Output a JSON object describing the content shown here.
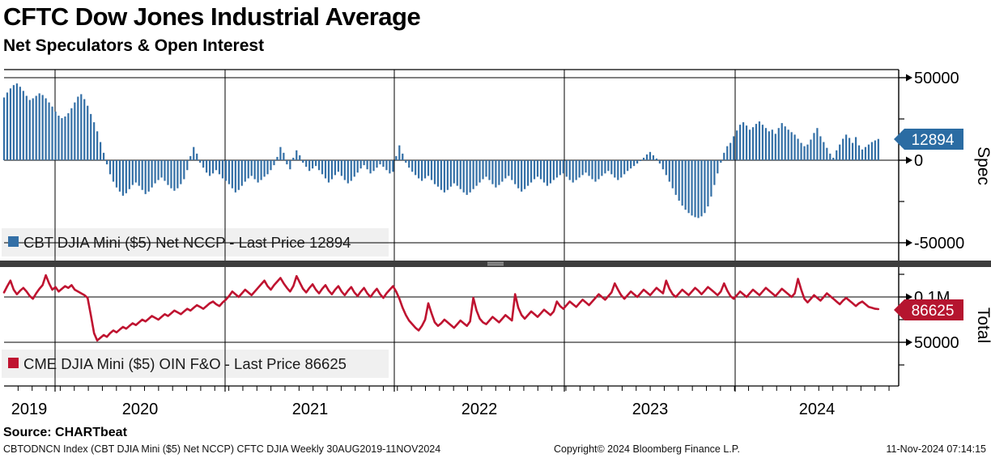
{
  "header": {
    "title": "CFTC Dow Jones Industrial Average",
    "subtitle": "Net Speculators & Open Interest"
  },
  "footer": {
    "source": "Source: CHARTbeat",
    "left": "CBTODNCN Index (CBT DJIA Mini ($5) Net NCCP) CFTC DJIA  Weekly 30AUG2019-11NOV2024",
    "center": "Copyright© 2024 Bloomberg Finance L.P.",
    "right": "11-Nov-2024 07:14:15"
  },
  "chart_data": {
    "type": "bar",
    "subtype": "two-panel bar + line, weekly time series",
    "period": "Weekly 30AUG2019-11NOV2024",
    "x_years": [
      "2019",
      "2020",
      "2021",
      "2022",
      "2023",
      "2024"
    ],
    "grid": true,
    "panels": [
      {
        "name": "Spec",
        "axis_label": "Spec",
        "type": "bar",
        "series_name": "CBT DJIA Mini ($5) Net NCCP",
        "legend": "CBT DJIA Mini ($5) Net NCCP - Last Price 12894",
        "last_price": 12894,
        "last_price_label": "12894",
        "color": "#336fa6",
        "tag_color": "#2b6ca3",
        "ylim": [
          -60000,
          55000
        ],
        "ticks": [
          {
            "v": 50000,
            "label": "50000"
          },
          {
            "v": 0,
            "label": "0"
          },
          {
            "v": -50000,
            "label": "-50000"
          }
        ],
        "minor_ticks": [
          25000,
          -25000
        ],
        "values": [
          38000,
          41000,
          43500,
          45500,
          46500,
          44500,
          42000,
          39000,
          36500,
          37500,
          39000,
          40500,
          39500,
          37500,
          35000,
          32500,
          29500,
          27000,
          25500,
          26500,
          28500,
          31500,
          35000,
          38500,
          40000,
          37000,
          33000,
          28000,
          23000,
          17500,
          11000,
          4500,
          -2500,
          -8500,
          -13000,
          -16500,
          -19000,
          -21500,
          -20000,
          -17500,
          -15000,
          -13500,
          -15500,
          -18000,
          -20500,
          -19000,
          -16500,
          -14000,
          -12000,
          -10500,
          -12500,
          -15000,
          -17000,
          -18500,
          -17000,
          -14500,
          -11500,
          -6000,
          2500,
          8000,
          4000,
          -1500,
          -4500,
          -7500,
          -9500,
          -8000,
          -6000,
          -8500,
          -11000,
          -12500,
          -14500,
          -17000,
          -19500,
          -18000,
          -15500,
          -13000,
          -11000,
          -9500,
          -11500,
          -13500,
          -12000,
          -10000,
          -8500,
          -6000,
          -3000,
          2000,
          8000,
          4500,
          -2500,
          -5500,
          1500,
          6000,
          3000,
          -1500,
          -4000,
          -6500,
          -5000,
          -3500,
          -6000,
          -8500,
          -11000,
          -13500,
          -11500,
          -9000,
          -7000,
          -9500,
          -12000,
          -14000,
          -12500,
          -10000,
          -7500,
          -5000,
          -3000,
          -5500,
          -8000,
          -6500,
          -4500,
          -2500,
          -4000,
          -6000,
          -8000,
          -7000,
          2500,
          9000,
          4000,
          -1500,
          -4500,
          -7000,
          -9000,
          -11000,
          -12500,
          -11000,
          -9500,
          -12000,
          -14500,
          -16000,
          -18000,
          -19500,
          -18000,
          -16000,
          -14000,
          -15500,
          -17500,
          -19500,
          -21000,
          -19500,
          -17500,
          -15500,
          -13500,
          -11500,
          -10000,
          -12000,
          -14500,
          -16500,
          -15000,
          -13000,
          -11000,
          -9500,
          -12000,
          -14500,
          -17000,
          -19000,
          -17500,
          -15500,
          -13500,
          -11500,
          -10000,
          -11500,
          -13500,
          -15500,
          -14000,
          -12000,
          -10500,
          -9000,
          -8000,
          -10000,
          -12000,
          -13500,
          -12000,
          -10500,
          -9000,
          -7500,
          -9500,
          -11500,
          -13000,
          -11500,
          -9500,
          -8000,
          -6500,
          -8500,
          -10500,
          -12000,
          -10500,
          -8500,
          -6500,
          -5000,
          -3500,
          -2000,
          -500,
          1500,
          3500,
          5000,
          3000,
          1000,
          -2000,
          -5500,
          -9000,
          -13000,
          -17000,
          -21000,
          -24500,
          -27500,
          -30000,
          -32000,
          -33500,
          -34500,
          -35000,
          -34000,
          -32000,
          -28000,
          -22000,
          -15000,
          -8000,
          -1500,
          4500,
          8500,
          10500,
          14500,
          18000,
          21500,
          23000,
          21000,
          18500,
          20000,
          22000,
          23500,
          21500,
          19500,
          17500,
          18500,
          16000,
          19500,
          22500,
          20500,
          18500,
          17000,
          15500,
          13000,
          10500,
          8500,
          9500,
          12500,
          16500,
          19500,
          14500,
          11000,
          7500,
          4000,
          1500,
          6000,
          9500,
          13000,
          15500,
          13500,
          10500,
          14000,
          9000,
          6500,
          8000,
          9500,
          11000,
          12000,
          12894
        ]
      },
      {
        "name": "Total",
        "axis_label": "Total",
        "type": "line",
        "series_name": "CME DJIA Mini ($5) OIN F&O",
        "legend": "CME DJIA Mini ($5) OIN F&O - Last Price 86625",
        "last_price": 86625,
        "last_price_label": "86625",
        "color": "#bf1330",
        "tag_color": "#b5152f",
        "ylim": [
          0,
          132000
        ],
        "ticks": [
          {
            "v": 100000,
            "label": "0.1M"
          },
          {
            "v": 50000,
            "label": "50000"
          }
        ],
        "minor_ticks": [
          125000,
          75000,
          25000
        ],
        "values": [
          105000,
          112000,
          118000,
          108000,
          103000,
          107000,
          110000,
          106000,
          101000,
          98000,
          104000,
          109000,
          113000,
          124000,
          115000,
          108000,
          111000,
          106000,
          109000,
          112000,
          110000,
          113000,
          108000,
          106000,
          104000,
          102000,
          99000,
          80000,
          60000,
          52000,
          55000,
          58000,
          56000,
          60000,
          63000,
          61000,
          64000,
          67000,
          65000,
          68000,
          71000,
          69000,
          72000,
          75000,
          73000,
          76000,
          79000,
          77000,
          75000,
          78000,
          81000,
          79000,
          82000,
          85000,
          83000,
          81000,
          84000,
          87000,
          85000,
          88000,
          91000,
          89000,
          87000,
          90000,
          93000,
          95000,
          92000,
          90000,
          94000,
          97000,
          101000,
          106000,
          103000,
          100000,
          104000,
          108000,
          105000,
          102000,
          106000,
          110000,
          114000,
          118000,
          112000,
          108000,
          113000,
          117000,
          121000,
          115000,
          110000,
          106000,
          112000,
          123000,
          116000,
          109000,
          105000,
          110000,
          114000,
          108000,
          104000,
          109000,
          113000,
          107000,
          103000,
          108000,
          112000,
          106000,
          102000,
          107000,
          111000,
          105000,
          101000,
          106000,
          110000,
          104000,
          100000,
          105000,
          109000,
          103000,
          99000,
          104000,
          108000,
          112000,
          106000,
          98000,
          88000,
          80000,
          74000,
          70000,
          66000,
          63000,
          68000,
          75000,
          93000,
          82000,
          72000,
          68000,
          71000,
          75000,
          72000,
          69000,
          66000,
          70000,
          74000,
          71000,
          68000,
          73000,
          99000,
          85000,
          76000,
          72000,
          70000,
          74000,
          78000,
          75000,
          72000,
          76000,
          80000,
          77000,
          74000,
          103000,
          88000,
          80000,
          76000,
          80000,
          84000,
          81000,
          78000,
          82000,
          86000,
          83000,
          80000,
          84000,
          95000,
          90000,
          87000,
          91000,
          95000,
          92000,
          89000,
          93000,
          97000,
          94000,
          91000,
          95000,
          99000,
          103000,
          100000,
          97000,
          101000,
          105000,
          115000,
          108000,
          102000,
          98000,
          102000,
          106000,
          103000,
          100000,
          104000,
          108000,
          105000,
          102000,
          106000,
          110000,
          107000,
          104000,
          118000,
          109000,
          103000,
          100000,
          104000,
          108000,
          105000,
          102000,
          106000,
          110000,
          107000,
          103000,
          107000,
          111000,
          108000,
          105000,
          102000,
          106000,
          115000,
          107000,
          101000,
          98000,
          102000,
          106000,
          103000,
          100000,
          104000,
          108000,
          105000,
          102000,
          106000,
          110000,
          107000,
          104000,
          101000,
          105000,
          109000,
          106000,
          103000,
          100000,
          104000,
          120000,
          108000,
          98000,
          94000,
          98000,
          102000,
          99000,
          96000,
          100000,
          104000,
          101000,
          98000,
          95000,
          92000,
          96000,
          99000,
          96000,
          93000,
          90000,
          93000,
          95000,
          92000,
          89000,
          88000,
          87000,
          86625
        ]
      }
    ]
  }
}
